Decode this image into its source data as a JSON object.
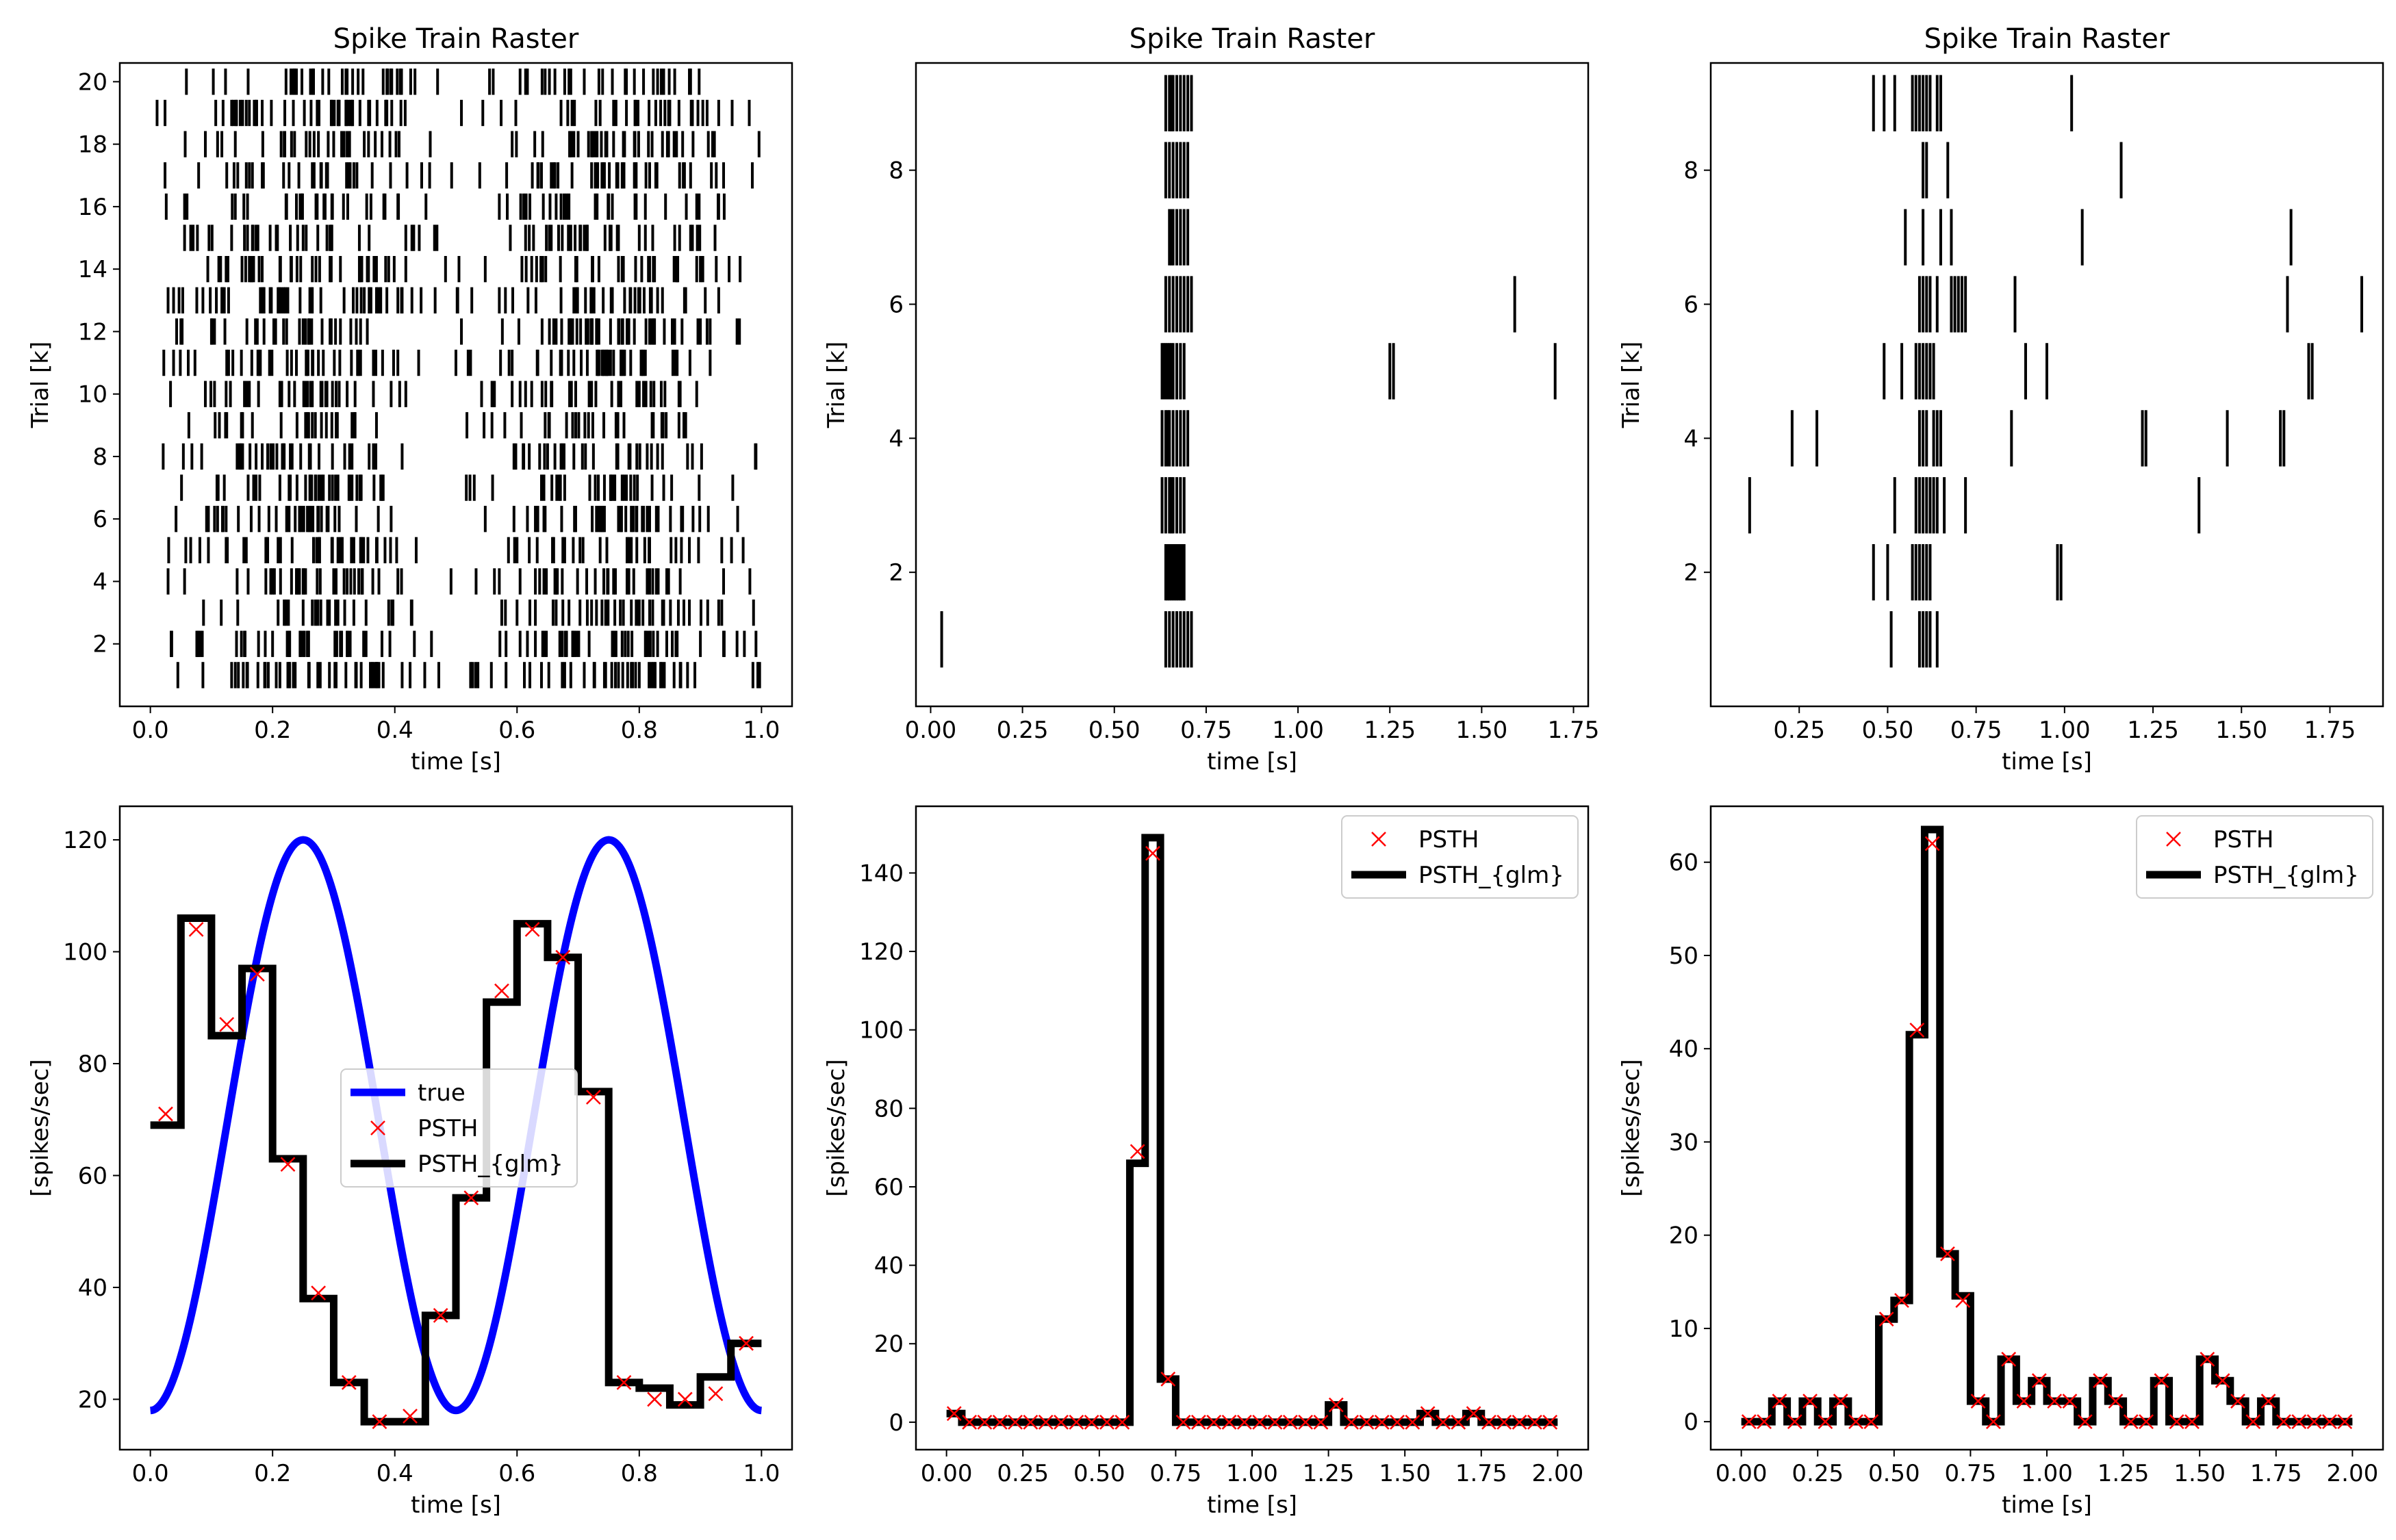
{
  "chart_data": [
    {
      "type": "raster",
      "title": "Spike Train Raster",
      "xlabel": "time [s]",
      "ylabel": "Trial [k]",
      "xlim": [
        -0.05,
        1.05
      ],
      "ylim": [
        0,
        20.6
      ],
      "xticks": [
        0.0,
        0.2,
        0.4,
        0.6,
        0.8,
        1.0
      ],
      "xtick_labels": [
        "0.0",
        "0.2",
        "0.4",
        "0.6",
        "0.8",
        "1.0"
      ],
      "yticks": [
        2,
        4,
        6,
        8,
        10,
        12,
        14,
        16,
        18,
        20
      ],
      "ytick_labels": [
        "2",
        "4",
        "6",
        "8",
        "10",
        "12",
        "14",
        "16",
        "18",
        "20"
      ],
      "trials": 20,
      "spike_generation": {
        "rate_mean": 69,
        "rate_amplitude": 51,
        "rate_frequency_hz": 2,
        "rate_phase": -1.571,
        "t_start": 0.0,
        "t_end": 1.0,
        "seed": 11
      }
    },
    {
      "type": "raster",
      "title": "Spike Train Raster",
      "xlabel": "time [s]",
      "ylabel": "Trial [k]",
      "xlim": [
        -0.04,
        1.79
      ],
      "ylim": [
        0,
        9.6
      ],
      "xticks": [
        0.0,
        0.25,
        0.5,
        0.75,
        1.0,
        1.25,
        1.5,
        1.75
      ],
      "xtick_labels": [
        "0.00",
        "0.25",
        "0.50",
        "0.75",
        "1.00",
        "1.25",
        "1.50",
        "1.75"
      ],
      "yticks": [
        2,
        4,
        6,
        8
      ],
      "ytick_labels": [
        "2",
        "4",
        "6",
        "8"
      ],
      "trials": [
        [
          0.03,
          0.64,
          0.65,
          0.66,
          0.67,
          0.68,
          0.69,
          0.7,
          0.71
        ],
        [
          0.64,
          0.645,
          0.65,
          0.655,
          0.66,
          0.665,
          0.67,
          0.675,
          0.68,
          0.685,
          0.69
        ],
        [
          0.63,
          0.64,
          0.65,
          0.655,
          0.66,
          0.67,
          0.68,
          0.69
        ],
        [
          0.63,
          0.64,
          0.645,
          0.65,
          0.66,
          0.67,
          0.68,
          0.69,
          0.7
        ],
        [
          0.63,
          0.635,
          0.64,
          0.645,
          0.65,
          0.655,
          0.66,
          0.67,
          0.68,
          0.69,
          1.25,
          1.26,
          1.7
        ],
        [
          0.64,
          0.65,
          0.66,
          0.67,
          0.68,
          0.69,
          0.7,
          0.71,
          1.59
        ],
        [
          0.65,
          0.655,
          0.66,
          0.67,
          0.68,
          0.69,
          0.7
        ],
        [
          0.64,
          0.65,
          0.66,
          0.67,
          0.68,
          0.69,
          0.7
        ],
        [
          0.64,
          0.65,
          0.655,
          0.66,
          0.67,
          0.68,
          0.69,
          0.7,
          0.71
        ]
      ]
    },
    {
      "type": "raster",
      "title": "Spike Train Raster",
      "xlabel": "time [s]",
      "ylabel": "Trial [k]",
      "xlim": [
        0.0,
        1.9
      ],
      "ylim": [
        0,
        9.6
      ],
      "xticks": [
        0.25,
        0.5,
        0.75,
        1.0,
        1.25,
        1.5,
        1.75
      ],
      "xtick_labels": [
        "0.25",
        "0.50",
        "0.75",
        "1.00",
        "1.25",
        "1.50",
        "1.75"
      ],
      "yticks": [
        2,
        4,
        6,
        8
      ],
      "ytick_labels": [
        "2",
        "4",
        "6",
        "8"
      ],
      "trials": [
        [
          0.51,
          0.59,
          0.6,
          0.61,
          0.62,
          0.64
        ],
        [
          0.46,
          0.5,
          0.57,
          0.58,
          0.59,
          0.6,
          0.61,
          0.62,
          0.98,
          0.99
        ],
        [
          0.11,
          0.52,
          0.58,
          0.59,
          0.6,
          0.61,
          0.62,
          0.63,
          0.64,
          0.66,
          0.72,
          1.38
        ],
        [
          0.23,
          0.3,
          0.59,
          0.6,
          0.61,
          0.63,
          0.64,
          0.65,
          0.85,
          1.22,
          1.23,
          1.46,
          1.61,
          1.62
        ],
        [
          0.49,
          0.54,
          0.58,
          0.59,
          0.6,
          0.61,
          0.62,
          0.63,
          0.89,
          0.95,
          1.69,
          1.7
        ],
        [
          0.59,
          0.6,
          0.61,
          0.62,
          0.64,
          0.68,
          0.69,
          0.7,
          0.71,
          0.72,
          0.86,
          1.63,
          1.84
        ],
        [
          0.55,
          0.6,
          0.65,
          0.68,
          1.05,
          1.64
        ],
        [
          0.6,
          0.61,
          0.67,
          1.16
        ],
        [
          0.46,
          0.49,
          0.52,
          0.57,
          0.58,
          0.59,
          0.6,
          0.61,
          0.62,
          0.64,
          0.65,
          1.02
        ]
      ]
    },
    {
      "type": "line",
      "title": "",
      "xlabel": "time [s]",
      "ylabel": "[spikes/sec]",
      "xlim": [
        -0.05,
        1.05
      ],
      "ylim": [
        11,
        126
      ],
      "xticks": [
        0.0,
        0.2,
        0.4,
        0.6,
        0.8,
        1.0
      ],
      "xtick_labels": [
        "0.0",
        "0.2",
        "0.4",
        "0.6",
        "0.8",
        "1.0"
      ],
      "yticks": [
        20,
        40,
        60,
        80,
        100,
        120
      ],
      "ytick_labels": [
        "20",
        "40",
        "60",
        "80",
        "100",
        "120"
      ],
      "true_curve": {
        "mean": 69,
        "amplitude": 51,
        "frequency_hz": 2,
        "phase": -1.571,
        "t_start": 0.0,
        "t_end": 1.0
      },
      "bin_edges": [
        0.0,
        0.05,
        0.1,
        0.15,
        0.2,
        0.25,
        0.3,
        0.35,
        0.4,
        0.45,
        0.5,
        0.55,
        0.6,
        0.65,
        0.7,
        0.75,
        0.8,
        0.85,
        0.9,
        0.95,
        1.0
      ],
      "psth_x": [
        0.025,
        0.075,
        0.125,
        0.175,
        0.225,
        0.275,
        0.325,
        0.375,
        0.425,
        0.475,
        0.525,
        0.575,
        0.625,
        0.675,
        0.725,
        0.775,
        0.825,
        0.875,
        0.925,
        0.975
      ],
      "psth": [
        71,
        104,
        87,
        96,
        62,
        39,
        23,
        16,
        17,
        35,
        56,
        93,
        104,
        99,
        74,
        23,
        20,
        20,
        21,
        30
      ],
      "psth_glm": [
        69,
        106,
        85,
        97,
        63,
        38,
        23,
        16,
        16,
        35,
        56,
        91,
        105,
        99,
        75,
        23,
        22,
        19,
        24,
        30
      ],
      "legend": {
        "position": "center",
        "entries": [
          "true",
          "PSTH",
          "PSTH_{glm}"
        ]
      },
      "colors": {
        "true": "#0000ff",
        "psth": "#ff0000",
        "glm": "#000000"
      }
    },
    {
      "type": "line",
      "title": "",
      "xlabel": "time [s]",
      "ylabel": "[spikes/sec]",
      "xlim": [
        -0.1,
        2.1
      ],
      "ylim": [
        -7,
        157
      ],
      "xticks": [
        0.0,
        0.25,
        0.5,
        0.75,
        1.0,
        1.25,
        1.5,
        1.75,
        2.0
      ],
      "xtick_labels": [
        "0.00",
        "0.25",
        "0.50",
        "0.75",
        "1.00",
        "1.25",
        "1.50",
        "1.75",
        "2.00"
      ],
      "yticks": [
        0,
        20,
        40,
        60,
        80,
        100,
        120,
        140
      ],
      "ytick_labels": [
        "0",
        "20",
        "40",
        "60",
        "80",
        "100",
        "120",
        "140"
      ],
      "bin_width": 0.05,
      "psth": [
        2.2,
        0,
        0,
        0,
        0,
        0,
        0,
        0,
        0,
        0,
        0,
        0,
        69,
        145,
        11,
        0,
        0,
        0,
        0,
        0,
        0,
        0,
        0,
        0,
        0,
        4.4,
        0,
        0,
        0,
        0,
        0,
        2.2,
        0,
        0,
        2.2,
        0,
        0,
        0,
        0,
        0
      ],
      "psth_glm": [
        2.2,
        0,
        0,
        0,
        0,
        0,
        0,
        0,
        0,
        0,
        0,
        0,
        66,
        149,
        11,
        0,
        0,
        0,
        0,
        0,
        0,
        0,
        0,
        0,
        0,
        4.4,
        0,
        0,
        0,
        0,
        0,
        2.2,
        0,
        0,
        2.2,
        0,
        0,
        0,
        0,
        0
      ],
      "legend": {
        "position": "top-right",
        "entries": [
          "PSTH",
          "PSTH_{glm}"
        ]
      },
      "colors": {
        "psth": "#ff0000",
        "glm": "#000000"
      }
    },
    {
      "type": "line",
      "title": "",
      "xlabel": "time [s]",
      "ylabel": "[spikes/sec]",
      "xlim": [
        -0.1,
        2.1
      ],
      "ylim": [
        -3,
        66
      ],
      "xticks": [
        0.0,
        0.25,
        0.5,
        0.75,
        1.0,
        1.25,
        1.5,
        1.75,
        2.0
      ],
      "xtick_labels": [
        "0.00",
        "0.25",
        "0.50",
        "0.75",
        "1.00",
        "1.25",
        "1.50",
        "1.75",
        "2.00"
      ],
      "yticks": [
        0,
        10,
        20,
        30,
        40,
        50,
        60
      ],
      "ytick_labels": [
        "0",
        "10",
        "20",
        "30",
        "40",
        "50",
        "60"
      ],
      "bin_width": 0.05,
      "psth": [
        0,
        0,
        2.2,
        0,
        2.2,
        0,
        2.2,
        0,
        0,
        11,
        13,
        42,
        62,
        18,
        13,
        2.2,
        0,
        6.7,
        2.2,
        4.4,
        2.2,
        2.2,
        0,
        4.4,
        2.2,
        0,
        0,
        4.4,
        0,
        0,
        6.7,
        4.4,
        2.2,
        0,
        2.2,
        0,
        0,
        0,
        0,
        0
      ],
      "psth_glm": [
        0,
        0,
        2.2,
        0,
        2.2,
        0,
        2.2,
        0,
        0,
        11,
        13,
        41.5,
        63.5,
        18,
        13.5,
        2.2,
        0,
        6.7,
        2.2,
        4.4,
        2.2,
        2.2,
        0,
        4.4,
        2.2,
        0,
        0,
        4.4,
        0,
        0,
        6.7,
        4.4,
        2.2,
        0,
        2.2,
        0,
        0,
        0,
        0,
        0
      ],
      "legend": {
        "position": "top-right",
        "entries": [
          "PSTH",
          "PSTH_{glm}"
        ]
      },
      "colors": {
        "psth": "#ff0000",
        "glm": "#000000"
      }
    }
  ]
}
